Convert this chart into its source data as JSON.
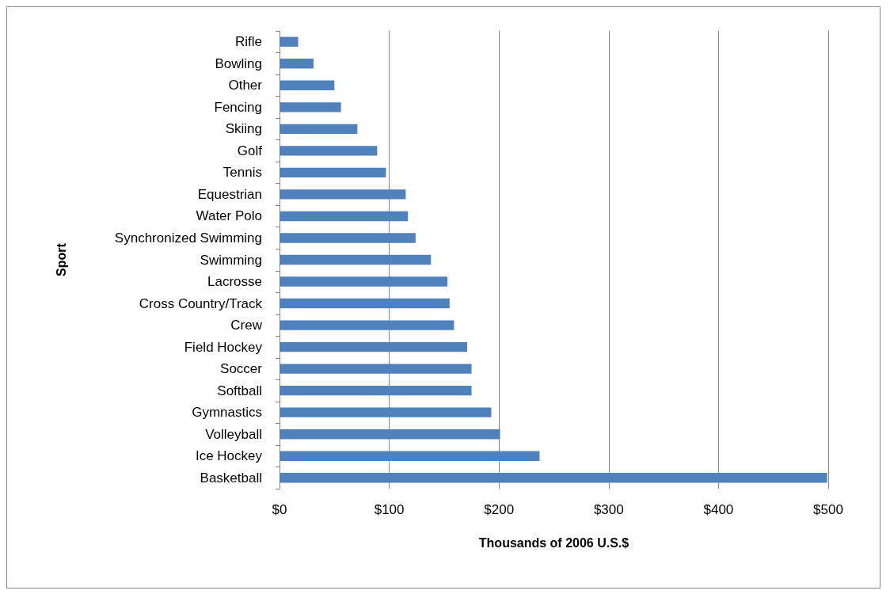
{
  "chart_data": {
    "type": "bar",
    "orientation": "horizontal",
    "xlabel": "Thousands of 2006 U.S.$",
    "ylabel": "Sport",
    "categories": [
      "Rifle",
      "Bowling",
      "Other",
      "Fencing",
      "Skiing",
      "Golf",
      "Tennis",
      "Equestrian",
      "Water Polo",
      "Synchronized Swimming",
      "Swimming",
      "Lacrosse",
      "Cross Country/Track",
      "Crew",
      "Field Hockey",
      "Soccer",
      "Softball",
      "Gymnastics",
      "Volleyball",
      "Ice Hockey",
      "Basketball"
    ],
    "values": [
      17,
      31,
      50,
      56,
      71,
      89,
      97,
      115,
      117,
      124,
      138,
      153,
      155,
      159,
      171,
      175,
      175,
      193,
      201,
      237,
      499
    ],
    "color": "#4f81bd",
    "xlim": [
      0,
      500
    ],
    "xticks": [
      {
        "value": 0,
        "label": "$0"
      },
      {
        "value": 100,
        "label": "$100"
      },
      {
        "value": 200,
        "label": "$200"
      },
      {
        "value": 300,
        "label": "$300"
      },
      {
        "value": 400,
        "label": "$400"
      },
      {
        "value": 500,
        "label": "$500"
      }
    ],
    "grid": "x"
  }
}
